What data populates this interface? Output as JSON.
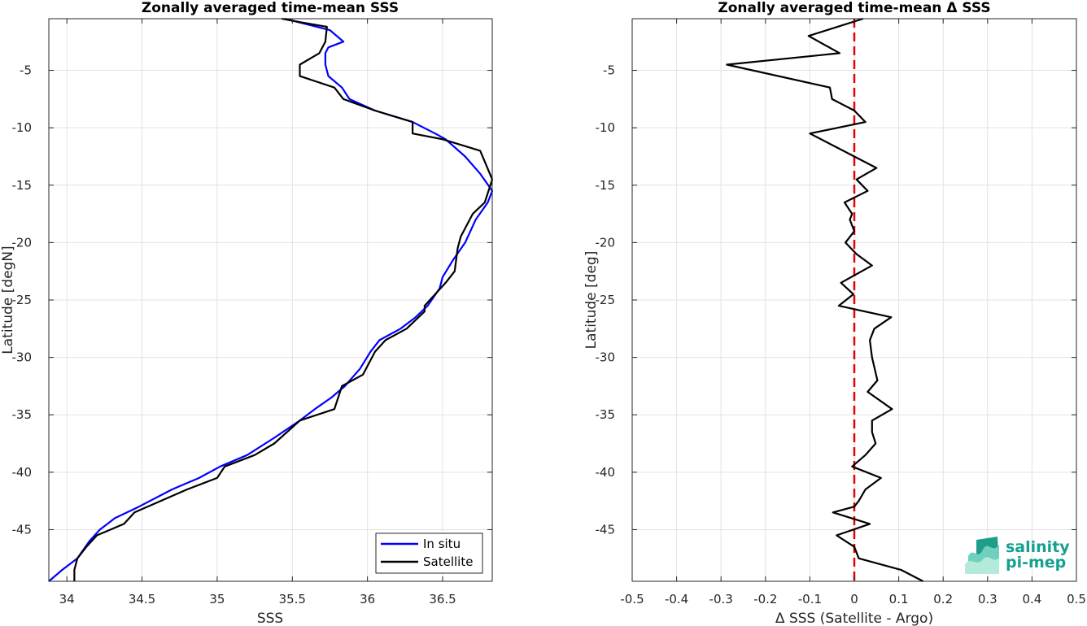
{
  "chart_data": [
    {
      "type": "line",
      "title": "Zonally averaged time-mean SSS",
      "xlabel": "SSS",
      "ylabel": "Latitude [degN]",
      "xlim": [
        33.88,
        36.83
      ],
      "ylim": [
        -49.5,
        -0.5
      ],
      "xticks": [
        34,
        34.5,
        35,
        35.5,
        36,
        36.5
      ],
      "yticks": [
        -45,
        -40,
        -35,
        -30,
        -25,
        -20,
        -15,
        -10,
        -5
      ],
      "grid": true,
      "legend": "bottom-right",
      "series": [
        {
          "name": "In situ",
          "color": "#0000ff",
          "points": [
            [
              35.45,
              -0.5
            ],
            [
              35.6,
              -1.0
            ],
            [
              35.75,
              -1.5
            ],
            [
              35.84,
              -2.5
            ],
            [
              35.74,
              -3.0
            ],
            [
              35.72,
              -3.5
            ],
            [
              35.72,
              -4.5
            ],
            [
              35.74,
              -5.5
            ],
            [
              35.83,
              -6.5
            ],
            [
              35.88,
              -7.5
            ],
            [
              36.05,
              -8.5
            ],
            [
              36.3,
              -9.5
            ],
            [
              36.45,
              -10.5
            ],
            [
              36.52,
              -11.0
            ],
            [
              36.65,
              -12.5
            ],
            [
              36.75,
              -14.0
            ],
            [
              36.83,
              -15.5
            ],
            [
              36.8,
              -16.5
            ],
            [
              36.72,
              -18.0
            ],
            [
              36.65,
              -20.0
            ],
            [
              36.57,
              -21.5
            ],
            [
              36.5,
              -23.0
            ],
            [
              36.48,
              -24.0
            ],
            [
              36.4,
              -25.5
            ],
            [
              36.32,
              -26.5
            ],
            [
              36.22,
              -27.5
            ],
            [
              36.08,
              -28.5
            ],
            [
              36.02,
              -29.5
            ],
            [
              35.95,
              -31.0
            ],
            [
              35.85,
              -32.5
            ],
            [
              35.76,
              -33.5
            ],
            [
              35.65,
              -34.5
            ],
            [
              35.55,
              -35.5
            ],
            [
              35.38,
              -37.0
            ],
            [
              35.2,
              -38.5
            ],
            [
              35.02,
              -39.5
            ],
            [
              34.88,
              -40.5
            ],
            [
              34.7,
              -41.5
            ],
            [
              34.48,
              -43.0
            ],
            [
              34.32,
              -44.0
            ],
            [
              34.22,
              -45.0
            ],
            [
              34.15,
              -46.0
            ],
            [
              34.07,
              -47.5
            ],
            [
              33.97,
              -48.5
            ],
            [
              33.88,
              -49.5
            ]
          ]
        },
        {
          "name": "Satellite",
          "color": "#000000",
          "points": [
            [
              35.43,
              -0.5
            ],
            [
              35.55,
              -0.8
            ],
            [
              35.73,
              -1.2
            ],
            [
              35.72,
              -2.5
            ],
            [
              35.68,
              -3.5
            ],
            [
              35.55,
              -4.5
            ],
            [
              35.55,
              -5.5
            ],
            [
              35.78,
              -6.5
            ],
            [
              35.84,
              -7.5
            ],
            [
              36.05,
              -8.5
            ],
            [
              36.3,
              -9.5
            ],
            [
              36.3,
              -10.5
            ],
            [
              36.5,
              -11.0
            ],
            [
              36.75,
              -12.0
            ],
            [
              36.83,
              -14.5
            ],
            [
              36.78,
              -16.5
            ],
            [
              36.7,
              -17.5
            ],
            [
              36.62,
              -19.5
            ],
            [
              36.6,
              -20.5
            ],
            [
              36.58,
              -22.5
            ],
            [
              36.52,
              -23.5
            ],
            [
              36.38,
              -25.5
            ],
            [
              36.38,
              -26.0
            ],
            [
              36.26,
              -27.5
            ],
            [
              36.12,
              -28.5
            ],
            [
              36.05,
              -29.5
            ],
            [
              35.97,
              -31.5
            ],
            [
              35.83,
              -32.5
            ],
            [
              35.78,
              -34.5
            ],
            [
              35.55,
              -35.5
            ],
            [
              35.38,
              -37.5
            ],
            [
              35.25,
              -38.5
            ],
            [
              35.05,
              -39.5
            ],
            [
              35.0,
              -40.5
            ],
            [
              34.8,
              -41.5
            ],
            [
              34.45,
              -43.5
            ],
            [
              34.38,
              -44.5
            ],
            [
              34.2,
              -45.5
            ],
            [
              34.13,
              -46.5
            ],
            [
              34.07,
              -47.5
            ],
            [
              34.05,
              -48.5
            ],
            [
              34.05,
              -49.5
            ]
          ]
        }
      ]
    },
    {
      "type": "line",
      "title": "Zonally averaged time-mean Δ SSS",
      "xlabel": "Δ SSS (Satellite - Argo)",
      "ylabel": "Latitude [deg]",
      "xlim": [
        -0.5,
        0.5
      ],
      "ylim": [
        -49.5,
        -0.5
      ],
      "xticks": [
        -0.5,
        -0.4,
        -0.3,
        -0.2,
        -0.1,
        0,
        0.1,
        0.2,
        0.3,
        0.4,
        0.5
      ],
      "yticks": [
        -45,
        -40,
        -35,
        -30,
        -25,
        -20,
        -15,
        -10,
        -5
      ],
      "grid": true,
      "reference_line": {
        "x": 0,
        "color": "#e60000",
        "style": "dashed"
      },
      "series": [
        {
          "color": "#000000",
          "points": [
            [
              0.02,
              -0.5
            ],
            [
              -0.103,
              -2.0
            ],
            [
              -0.033,
              -3.5
            ],
            [
              -0.287,
              -4.5
            ],
            [
              -0.055,
              -6.5
            ],
            [
              -0.05,
              -7.5
            ],
            [
              0.0,
              -8.5
            ],
            [
              0.025,
              -9.5
            ],
            [
              -0.1,
              -10.5
            ],
            [
              0.05,
              -13.5
            ],
            [
              0.005,
              -14.5
            ],
            [
              0.03,
              -15.5
            ],
            [
              -0.022,
              -16.5
            ],
            [
              -0.005,
              -17.5
            ],
            [
              -0.01,
              -18.0
            ],
            [
              0.0,
              -19.0
            ],
            [
              -0.02,
              -20.0
            ],
            [
              0.005,
              -21.0
            ],
            [
              0.04,
              -22.0
            ],
            [
              -0.03,
              -23.5
            ],
            [
              -0.002,
              -24.5
            ],
            [
              -0.035,
              -25.5
            ],
            [
              0.083,
              -26.5
            ],
            [
              0.045,
              -27.5
            ],
            [
              0.035,
              -28.5
            ],
            [
              0.04,
              -30.0
            ],
            [
              0.052,
              -32.0
            ],
            [
              0.03,
              -33.0
            ],
            [
              0.085,
              -34.5
            ],
            [
              0.04,
              -35.5
            ],
            [
              0.04,
              -36.5
            ],
            [
              0.048,
              -37.5
            ],
            [
              0.025,
              -38.5
            ],
            [
              -0.005,
              -39.5
            ],
            [
              0.06,
              -40.5
            ],
            [
              0.025,
              -41.5
            ],
            [
              0.01,
              -42.5
            ],
            [
              0.0,
              -43.0
            ],
            [
              -0.048,
              -43.5
            ],
            [
              0.035,
              -44.5
            ],
            [
              -0.04,
              -45.5
            ],
            [
              0.0,
              -46.5
            ],
            [
              0.01,
              -47.5
            ],
            [
              0.105,
              -48.5
            ],
            [
              0.155,
              -49.5
            ]
          ]
        }
      ]
    }
  ],
  "legend": {
    "in_situ_label": "In situ",
    "satellite_label": "Satellite"
  },
  "logo": {
    "line1": "salinity",
    "line2": "pi-mep"
  }
}
